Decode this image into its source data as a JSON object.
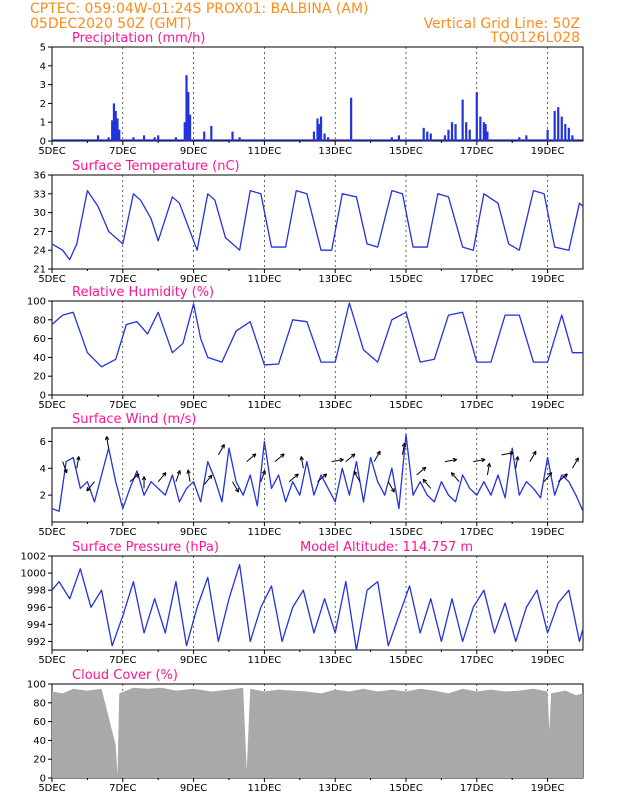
{
  "header": {
    "line1_left": "CPTEC:   059:04W-01:24S   PROX01: BALBINA (AM)",
    "line2_left": "05DEC2020 50Z (GMT)",
    "line2_right": "Vertical Grid Line: 50Z",
    "line3_right": "TQ0126L028"
  },
  "colors": {
    "header": "#ff8c1a",
    "panel_title": "#ff1493",
    "series": "#2233dd",
    "cloud": "#a9a9a9"
  },
  "x_axis": {
    "tick_labels": [
      "5DEC",
      "7DEC",
      "9DEC",
      "11DEC",
      "13DEC",
      "15DEC",
      "17DEC",
      "19DEC"
    ],
    "tick_days": [
      5,
      7,
      9,
      11,
      13,
      15,
      17,
      19
    ],
    "range_days": [
      5,
      20
    ]
  },
  "chart_data": [
    {
      "id": "precip",
      "type": "bar",
      "title": "Precipitation (mm/h)",
      "ylim": [
        0,
        5
      ],
      "yticks": [
        0,
        1,
        2,
        3,
        4,
        5
      ],
      "x_days": [
        6.3,
        6.6,
        6.7,
        6.75,
        6.8,
        6.85,
        6.9,
        7.3,
        7.6,
        7.9,
        8.0,
        8.5,
        8.75,
        8.8,
        8.85,
        8.9,
        9.3,
        9.5,
        10.1,
        10.3,
        12.4,
        12.5,
        12.55,
        12.6,
        12.7,
        12.8,
        13.45,
        14.6,
        14.8,
        15.5,
        15.6,
        15.7,
        16.1,
        16.2,
        16.3,
        16.4,
        16.6,
        16.7,
        16.8,
        17.0,
        17.1,
        17.2,
        17.25,
        17.3,
        18.2,
        18.4,
        19.0,
        19.2,
        19.3,
        19.4,
        19.5,
        19.6,
        19.7
      ],
      "values": [
        0.3,
        0.2,
        1.1,
        2.0,
        1.6,
        1.2,
        0.6,
        0.2,
        0.3,
        0.2,
        0.3,
        0.2,
        1.0,
        3.5,
        2.6,
        1.4,
        0.5,
        0.8,
        0.5,
        0.2,
        0.5,
        1.2,
        0.9,
        1.3,
        0.4,
        0.2,
        2.3,
        0.2,
        0.3,
        0.7,
        0.5,
        0.4,
        0.3,
        0.6,
        1.0,
        0.9,
        2.2,
        1.0,
        0.6,
        2.6,
        1.3,
        1.0,
        0.9,
        0.5,
        0.2,
        0.3,
        0.6,
        1.6,
        1.8,
        1.3,
        0.9,
        0.7,
        0.3
      ]
    },
    {
      "id": "temp",
      "type": "line",
      "title": "Surface Temperature (nC)",
      "ylim": [
        21,
        36
      ],
      "yticks": [
        21,
        24,
        27,
        30,
        33,
        36
      ],
      "x_days": [
        5.0,
        5.3,
        5.5,
        5.7,
        6.0,
        6.3,
        6.6,
        7.0,
        7.3,
        7.5,
        7.8,
        8.0,
        8.4,
        8.6,
        8.8,
        9.1,
        9.4,
        9.6,
        9.9,
        10.3,
        10.6,
        10.9,
        11.2,
        11.6,
        11.9,
        12.2,
        12.6,
        12.9,
        13.2,
        13.6,
        13.9,
        14.2,
        14.6,
        14.9,
        15.2,
        15.6,
        15.9,
        16.2,
        16.6,
        16.9,
        17.2,
        17.6,
        17.9,
        18.2,
        18.6,
        18.9,
        19.2,
        19.6,
        19.9,
        20.0
      ],
      "values": [
        25.0,
        24.0,
        22.5,
        25.0,
        33.5,
        31.0,
        27.0,
        25.0,
        33.0,
        32.0,
        29.0,
        25.5,
        32.5,
        31.5,
        28.5,
        24.0,
        33.0,
        32.0,
        26.0,
        24.0,
        33.5,
        33.0,
        24.5,
        24.5,
        33.5,
        33.0,
        24.0,
        24.0,
        33.0,
        32.5,
        25.0,
        24.5,
        33.5,
        33.0,
        24.5,
        24.5,
        33.0,
        32.5,
        24.5,
        24.0,
        33.0,
        31.5,
        25.0,
        24.0,
        33.5,
        33.0,
        24.5,
        24.0,
        31.5,
        31.0
      ]
    },
    {
      "id": "rh",
      "type": "line",
      "title": "Relative Humidity (%)",
      "ylim": [
        0,
        100
      ],
      "yticks": [
        0,
        20,
        40,
        60,
        80,
        100
      ],
      "x_days": [
        5.0,
        5.3,
        5.6,
        6.0,
        6.4,
        6.8,
        7.1,
        7.4,
        7.7,
        8.0,
        8.4,
        8.7,
        9.0,
        9.2,
        9.4,
        9.8,
        10.2,
        10.6,
        11.0,
        11.4,
        11.8,
        12.2,
        12.6,
        13.0,
        13.4,
        13.8,
        14.2,
        14.6,
        15.0,
        15.4,
        15.8,
        16.2,
        16.6,
        17.0,
        17.4,
        17.8,
        18.2,
        18.6,
        19.0,
        19.4,
        19.7,
        20.0
      ],
      "values": [
        75,
        85,
        88,
        45,
        30,
        38,
        75,
        78,
        65,
        88,
        45,
        55,
        97,
        60,
        40,
        35,
        68,
        78,
        32,
        33,
        80,
        78,
        35,
        35,
        98,
        48,
        35,
        80,
        88,
        35,
        38,
        85,
        88,
        35,
        35,
        85,
        85,
        35,
        35,
        85,
        45,
        45
      ]
    },
    {
      "id": "wind",
      "type": "line",
      "title": "Surface Wind (m/s)",
      "ylim": [
        0,
        7
      ],
      "yticks": [
        2,
        4,
        6
      ],
      "x_days": [
        5.0,
        5.2,
        5.4,
        5.6,
        5.8,
        6.0,
        6.2,
        6.4,
        6.6,
        6.8,
        7.0,
        7.2,
        7.4,
        7.6,
        7.8,
        8.0,
        8.2,
        8.4,
        8.6,
        8.8,
        9.0,
        9.2,
        9.4,
        9.6,
        9.8,
        10.0,
        10.2,
        10.4,
        10.6,
        10.8,
        11.0,
        11.2,
        11.4,
        11.6,
        11.8,
        12.0,
        12.2,
        12.4,
        12.6,
        12.8,
        13.0,
        13.2,
        13.4,
        13.6,
        13.8,
        14.0,
        14.2,
        14.4,
        14.6,
        14.8,
        15.0,
        15.2,
        15.4,
        15.6,
        15.8,
        16.0,
        16.2,
        16.4,
        16.6,
        16.8,
        17.0,
        17.2,
        17.4,
        17.6,
        17.8,
        18.0,
        18.2,
        18.4,
        18.6,
        18.8,
        19.0,
        19.2,
        19.4,
        19.6,
        19.8,
        20.0
      ],
      "values": [
        1.0,
        0.8,
        4.5,
        4.8,
        2.5,
        3.0,
        1.5,
        3.5,
        5.5,
        3.0,
        1.0,
        2.5,
        3.8,
        2.0,
        3.0,
        2.5,
        2.0,
        3.5,
        1.5,
        2.5,
        3.0,
        1.5,
        4.5,
        3.2,
        1.5,
        5.5,
        3.0,
        2.0,
        3.5,
        1.2,
        6.0,
        2.5,
        3.5,
        1.5,
        3.0,
        2.0,
        4.5,
        2.0,
        3.5,
        2.5,
        1.5,
        4.0,
        2.0,
        4.5,
        1.5,
        4.8,
        3.0,
        2.0,
        4.0,
        1.0,
        6.5,
        2.0,
        3.0,
        2.0,
        1.5,
        3.0,
        2.0,
        1.5,
        3.5,
        2.5,
        2.0,
        3.0,
        2.0,
        3.5,
        1.8,
        5.5,
        2.0,
        3.0,
        2.5,
        1.8,
        4.8,
        2.0,
        3.5,
        3.0,
        2.0,
        0.8
      ],
      "arrow_days": [
        5.3,
        5.7,
        6.2,
        6.6,
        7.2,
        7.6,
        8.0,
        8.5,
        8.9,
        9.3,
        9.7,
        10.1,
        10.5,
        10.9,
        11.3,
        11.7,
        12.1,
        12.5,
        12.9,
        13.3,
        13.7,
        14.1,
        14.5,
        14.9,
        15.3,
        15.7,
        16.1,
        16.5,
        16.9,
        17.3,
        17.7,
        18.1,
        18.5,
        18.9,
        19.3,
        19.7
      ],
      "arrow_speeds": [
        4.5,
        4.0,
        3.0,
        5.5,
        3.0,
        2.5,
        3.0,
        3.0,
        3.0,
        2.8,
        5.0,
        3.0,
        4.5,
        3.0,
        4.5,
        3.0,
        4.0,
        3.0,
        4.5,
        4.5,
        3.0,
        4.5,
        3.0,
        5.0,
        3.5,
        2.5,
        4.5,
        3.0,
        4.5,
        3.5,
        5.0,
        4.0,
        4.5,
        3.0,
        3.0,
        4.0
      ],
      "arrow_dirs_deg": [
        290,
        80,
        230,
        100,
        40,
        90,
        50,
        70,
        100,
        50,
        60,
        300,
        40,
        70,
        40,
        40,
        100,
        40,
        10,
        40,
        120,
        60,
        300,
        80,
        40,
        130,
        10,
        130,
        10,
        80,
        10,
        80,
        60,
        50,
        40,
        60
      ]
    },
    {
      "id": "pressure",
      "type": "line",
      "title": "Surface Pressure (hPa)",
      "annotation": "Model Altitude: 114.757  m",
      "ylim": [
        991,
        1002
      ],
      "yticks": [
        992,
        994,
        996,
        998,
        1000,
        1002
      ],
      "x_days": [
        5.0,
        5.2,
        5.5,
        5.8,
        6.1,
        6.4,
        6.7,
        7.0,
        7.3,
        7.6,
        7.9,
        8.2,
        8.5,
        8.8,
        9.1,
        9.4,
        9.7,
        10.0,
        10.3,
        10.6,
        10.9,
        11.2,
        11.5,
        11.8,
        12.1,
        12.4,
        12.7,
        13.0,
        13.3,
        13.6,
        13.9,
        14.2,
        14.5,
        14.8,
        15.1,
        15.4,
        15.7,
        16.0,
        16.3,
        16.6,
        16.9,
        17.2,
        17.5,
        17.8,
        18.1,
        18.4,
        18.7,
        19.0,
        19.3,
        19.6,
        19.9,
        20.0
      ],
      "values": [
        998,
        999,
        997,
        1000.5,
        996,
        998,
        991.5,
        995,
        999,
        993,
        997,
        993,
        999,
        991.5,
        996,
        999.5,
        992,
        997,
        1001,
        992,
        996,
        998.5,
        992,
        996,
        998,
        993,
        997,
        993,
        999,
        991,
        998,
        999,
        991.5,
        995,
        998.5,
        993,
        997,
        992,
        997,
        992,
        996,
        998,
        993,
        996.5,
        992,
        996,
        998,
        993,
        996.5,
        998,
        992,
        993.5
      ]
    },
    {
      "id": "cloud",
      "type": "area",
      "title": "Cloud Cover (%)",
      "ylim": [
        0,
        100
      ],
      "yticks": [
        0,
        20,
        40,
        60,
        80,
        100
      ],
      "x_days": [
        5.0,
        5.3,
        5.6,
        6.0,
        6.4,
        6.8,
        6.85,
        6.9,
        7.3,
        7.7,
        8.1,
        8.5,
        9.0,
        9.5,
        10.0,
        10.4,
        10.5,
        10.6,
        11.0,
        11.4,
        11.8,
        12.2,
        12.6,
        13.0,
        13.4,
        13.8,
        14.2,
        14.6,
        15.0,
        15.4,
        15.8,
        16.2,
        16.6,
        17.0,
        17.4,
        17.8,
        18.2,
        18.6,
        19.0,
        19.05,
        19.1,
        19.5,
        19.8,
        20.0
      ],
      "values": [
        92,
        90,
        95,
        93,
        95,
        35,
        3,
        90,
        96,
        95,
        96,
        93,
        95,
        92,
        94,
        96,
        8,
        95,
        92,
        94,
        93,
        92,
        90,
        94,
        92,
        95,
        92,
        94,
        92,
        95,
        93,
        90,
        95,
        92,
        94,
        92,
        93,
        95,
        92,
        50,
        90,
        93,
        88,
        90
      ]
    }
  ]
}
